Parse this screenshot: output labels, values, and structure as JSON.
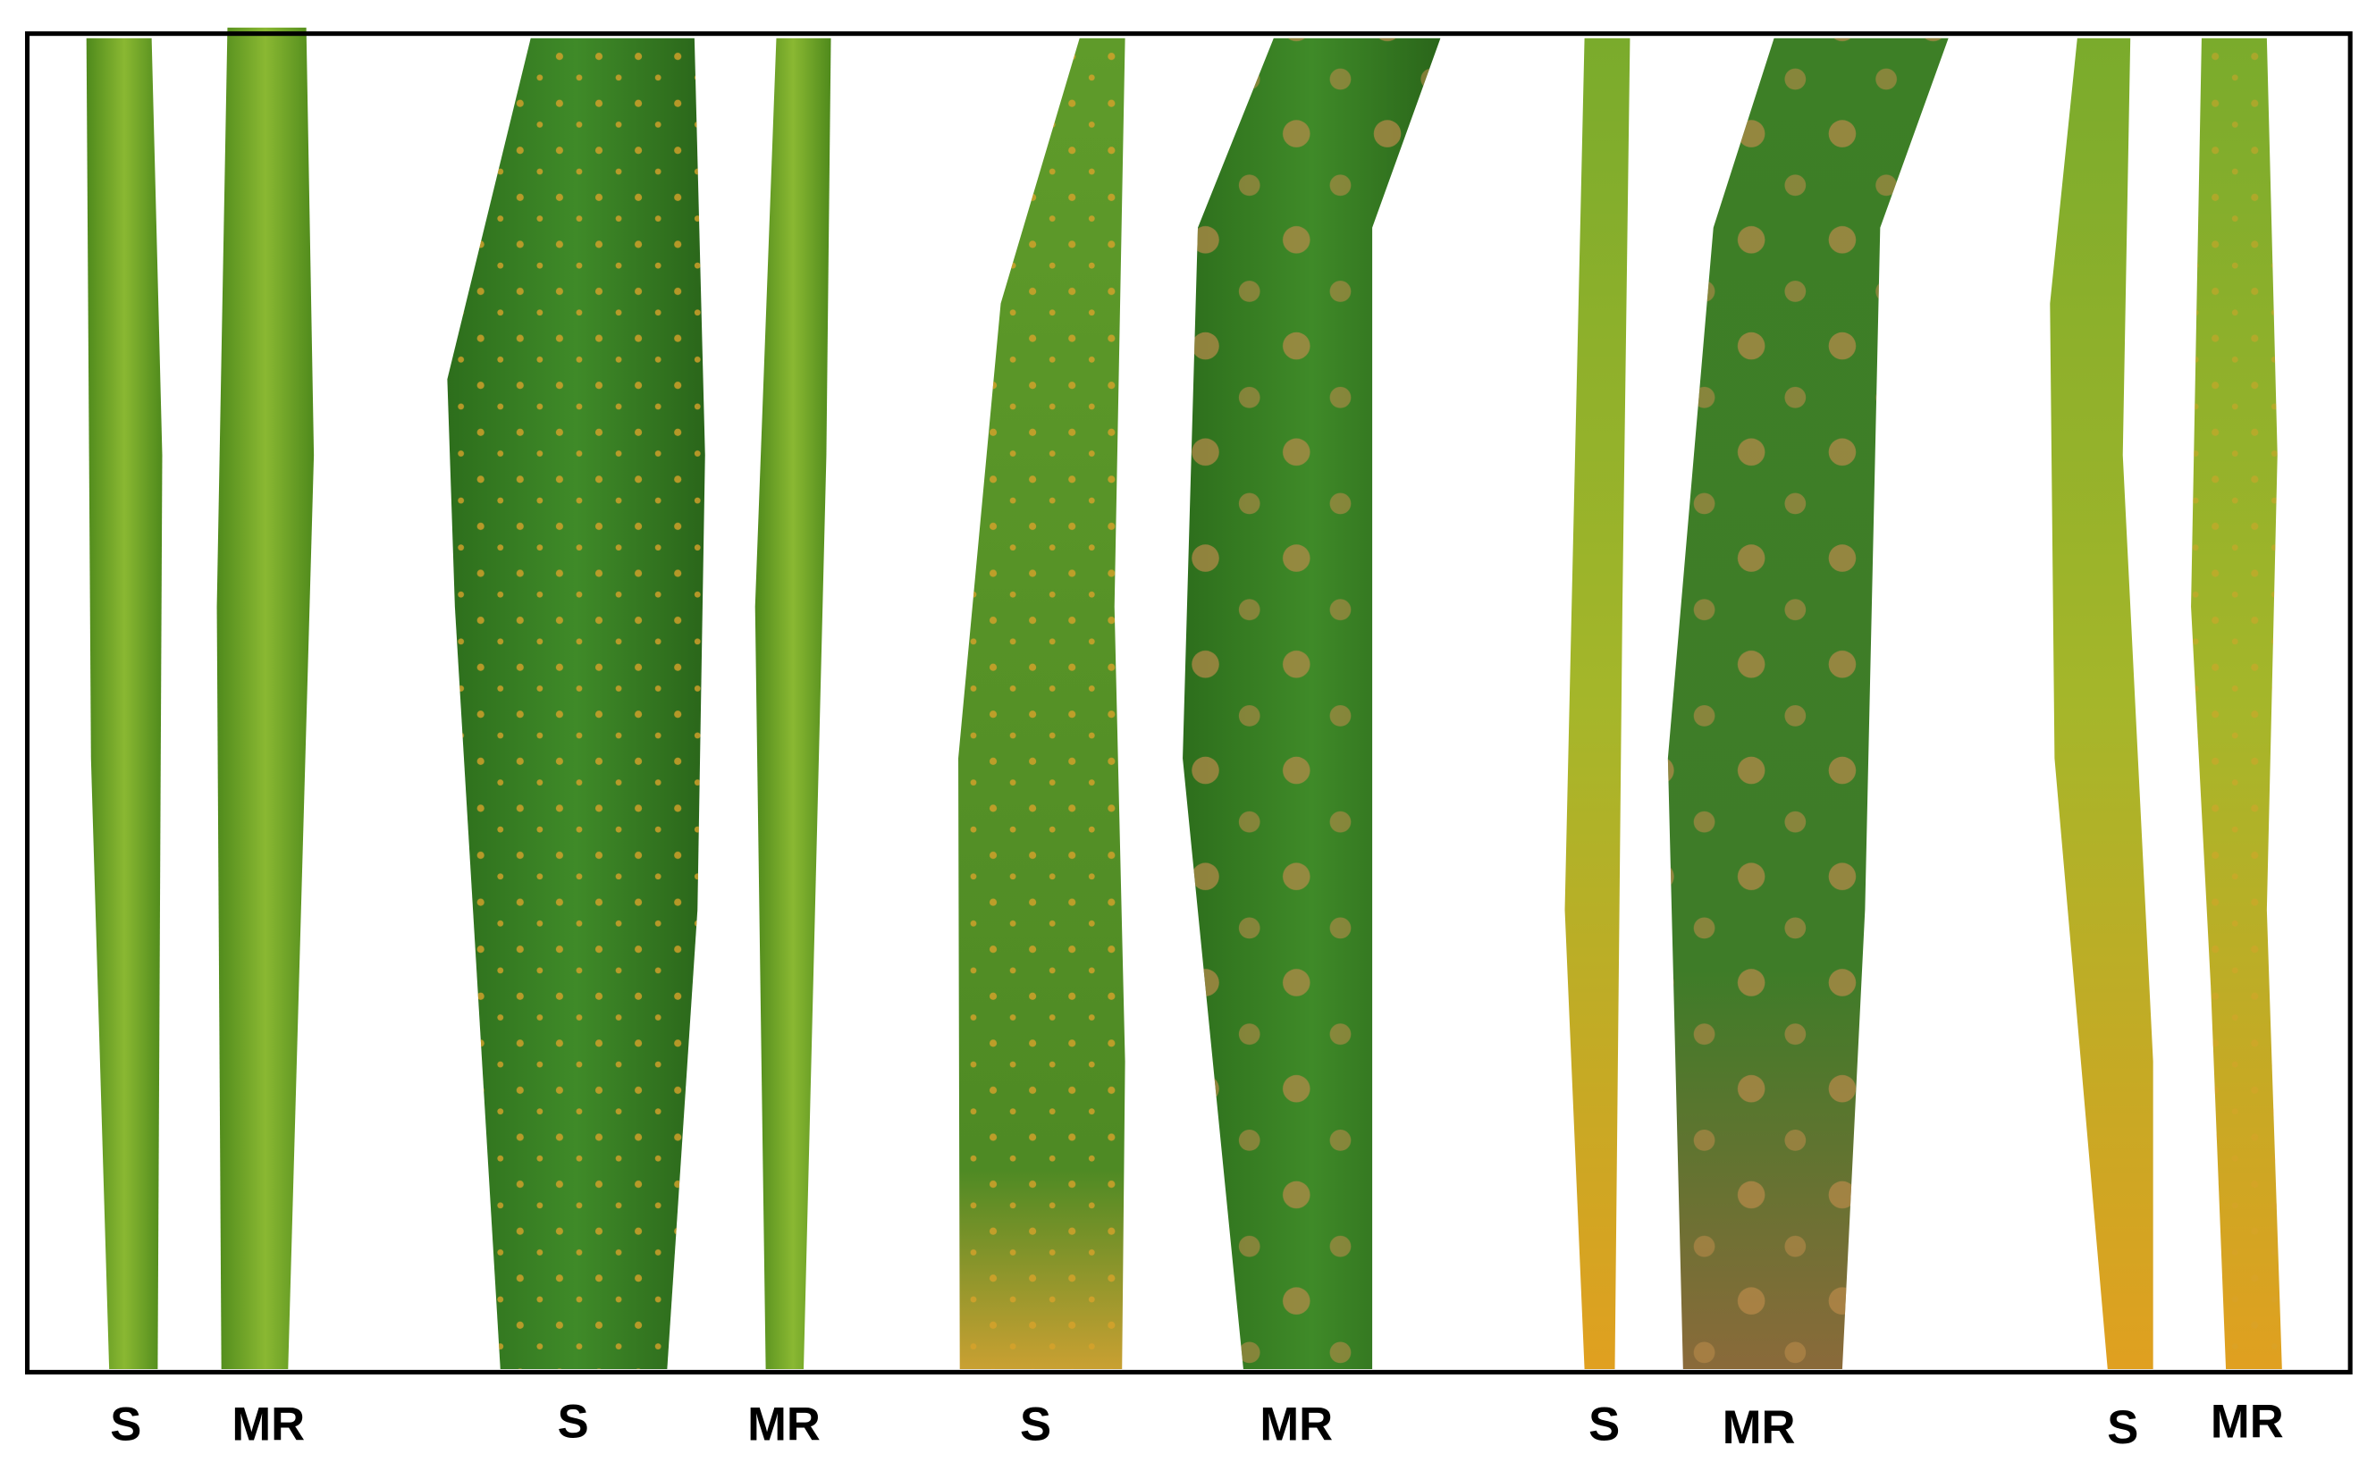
{
  "labels": [
    "S",
    "MR",
    "S",
    "MR",
    "S",
    "MR",
    "S",
    "MR",
    "S",
    "MR"
  ]
}
